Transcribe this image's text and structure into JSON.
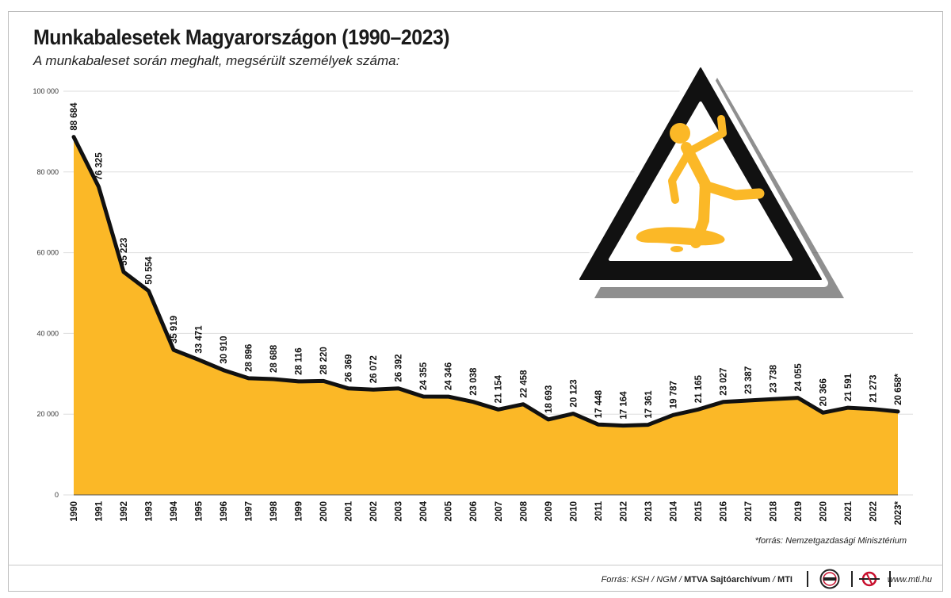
{
  "header": {
    "title": "Munkabalesetek Magyarországon (1990–2023)",
    "subtitle": "A munkabaleset során meghalt, megsérült személyek száma:"
  },
  "chart_data": {
    "type": "area",
    "x": [
      "1990",
      "1991",
      "1992",
      "1993",
      "1994",
      "1995",
      "1996",
      "1997",
      "1998",
      "1999",
      "2000",
      "2001",
      "2002",
      "2003",
      "2004",
      "2005",
      "2006",
      "2007",
      "2008",
      "2009",
      "2010",
      "2011",
      "2012",
      "2013",
      "2014",
      "2015",
      "2016",
      "2017",
      "2018",
      "2019",
      "2020",
      "2021",
      "2022",
      "2023*"
    ],
    "values": [
      88684,
      76325,
      55223,
      50554,
      35919,
      33471,
      30910,
      28896,
      28688,
      28116,
      28220,
      26369,
      26072,
      26392,
      24355,
      24346,
      23038,
      21154,
      22458,
      18693,
      20123,
      17448,
      17164,
      17361,
      19787,
      21165,
      23027,
      23387,
      23738,
      24055,
      20366,
      21591,
      21273,
      20658
    ],
    "data_labels": [
      "88 684",
      "76 325",
      "55 223",
      "50 554",
      "35 919",
      "33 471",
      "30 910",
      "28 896",
      "28 688",
      "28 116",
      "28 220",
      "26 369",
      "26 072",
      "26 392",
      "24 355",
      "24 346",
      "23 038",
      "21 154",
      "22 458",
      "18 693",
      "20 123",
      "17 448",
      "17 164",
      "17 361",
      "19 787",
      "21 165",
      "23 027",
      "23 387",
      "23 738",
      "24 055",
      "20 366",
      "21 591",
      "21 273",
      "20 658*"
    ],
    "yticks": [
      0,
      20000,
      40000,
      60000,
      80000,
      100000
    ],
    "ytick_labels": [
      "0",
      "20 000",
      "40 000",
      "60 000",
      "80 000",
      "100 000"
    ],
    "ylim": [
      0,
      100000
    ],
    "grid": true,
    "colors": {
      "area": "#fbb827",
      "line": "#111111",
      "grid": "#dedede"
    }
  },
  "illustration": {
    "name": "slippery-floor-warning-sign",
    "colors": {
      "fill": "#fbb827",
      "border": "#111111"
    }
  },
  "footnote": "*forrás: Nemzetgazdasági Minisztérium",
  "footer": {
    "source_prefix": "Forrás: KSH / NGM / ",
    "source_archive": "MTVA Sajtóarchívum",
    "source_slash": " / ",
    "source_mti": "MTI",
    "logo1": "mtva-logo",
    "logo2": "mti-logo",
    "website": "www.mti.hu"
  }
}
